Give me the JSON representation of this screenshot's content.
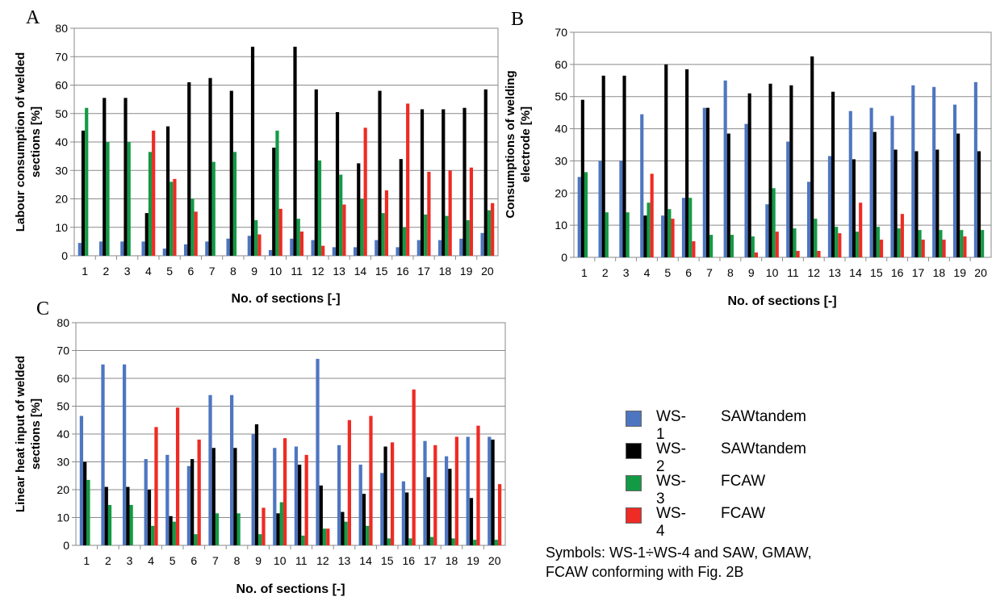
{
  "legend": [
    {
      "series": "WS-1",
      "method": "SAWtandem",
      "color": "#4e76c0"
    },
    {
      "series": "WS-2",
      "method": "SAWtandem",
      "color": "#000000"
    },
    {
      "series": "WS-3",
      "method": "FCAW",
      "color": "#139a45"
    },
    {
      "series": "WS-4",
      "method": "FCAW",
      "color": "#ee2b24"
    }
  ],
  "note": {
    "line1": "Symbols: WS-1÷WS-4 and SAW, GMAW,",
    "line2": "FCAW conforming with Fig. 2B"
  },
  "panels": {
    "a": {
      "letter": "A"
    },
    "b": {
      "letter": "B"
    },
    "c": {
      "letter": "C"
    }
  },
  "chart_data": [
    {
      "panel": "A",
      "type": "bar",
      "xlabel": "No. of sections [-]",
      "ylabel": "Labour consumption of welded sections [%]",
      "ylim": [
        0,
        80
      ],
      "yticks": [
        0,
        10,
        20,
        30,
        40,
        50,
        60,
        70,
        80
      ],
      "grid": true,
      "categories": [
        "1",
        "2",
        "3",
        "4",
        "5",
        "6",
        "7",
        "8",
        "9",
        "10",
        "11",
        "12",
        "13",
        "14",
        "15",
        "16",
        "17",
        "18",
        "19",
        "20"
      ],
      "series": [
        {
          "name": "WS-1",
          "color": "#4e76c0",
          "values": [
            4.5,
            5,
            5,
            5,
            2.5,
            4,
            5,
            6,
            7,
            2,
            6,
            5.5,
            3,
            3,
            5.5,
            3,
            5.5,
            5.5,
            6,
            8
          ]
        },
        {
          "name": "WS-2",
          "color": "#000000",
          "values": [
            44,
            55.5,
            55.5,
            15,
            45.5,
            61,
            62.5,
            58,
            73.5,
            38,
            73.5,
            58.5,
            50.5,
            32.5,
            58,
            34,
            51.5,
            51.5,
            52,
            58.5
          ]
        },
        {
          "name": "WS-3",
          "color": "#139a45",
          "values": [
            52,
            40,
            40,
            36.5,
            26,
            20,
            33,
            36.5,
            12.5,
            44,
            13,
            33.5,
            28.5,
            20,
            15,
            10,
            14.5,
            14,
            12.5,
            16
          ]
        },
        {
          "name": "WS-4",
          "color": "#ee2b24",
          "values": [
            0,
            0,
            0,
            44,
            27,
            15.5,
            0,
            0,
            7.5,
            16.5,
            8.5,
            3.5,
            18,
            45,
            23,
            53.5,
            29.5,
            30,
            31,
            18.5
          ]
        }
      ]
    },
    {
      "panel": "B",
      "type": "bar",
      "xlabel": "No. of sections [-]",
      "ylabel": "Consumptions of welding electrode [%]",
      "ylim": [
        0,
        70
      ],
      "yticks": [
        0,
        10,
        20,
        30,
        40,
        50,
        60,
        70
      ],
      "grid": true,
      "categories": [
        "1",
        "2",
        "3",
        "4",
        "5",
        "6",
        "7",
        "8",
        "9",
        "10",
        "11",
        "12",
        "13",
        "14",
        "15",
        "16",
        "17",
        "18",
        "19",
        "20"
      ],
      "series": [
        {
          "name": "WS-1",
          "color": "#4e76c0",
          "values": [
            25,
            30,
            30,
            44.5,
            13,
            18.5,
            46.5,
            55,
            41.5,
            16.5,
            36,
            23.5,
            31.5,
            45.5,
            46.5,
            44,
            53.5,
            53,
            47.5,
            54.5
          ]
        },
        {
          "name": "WS-2",
          "color": "#000000",
          "values": [
            49,
            56.5,
            56.5,
            13,
            60,
            58.5,
            46.5,
            38.5,
            51,
            54,
            53.5,
            62.5,
            51.5,
            30.5,
            39,
            33.5,
            33,
            33.5,
            38.5,
            33
          ]
        },
        {
          "name": "WS-3",
          "color": "#139a45",
          "values": [
            26.5,
            14,
            14,
            17,
            15,
            18.5,
            7,
            7,
            6.5,
            21.5,
            9,
            12,
            9.5,
            8,
            9.5,
            9,
            8.5,
            8.5,
            8.5,
            8.5
          ]
        },
        {
          "name": "WS-4",
          "color": "#ee2b24",
          "values": [
            0,
            0,
            0,
            26,
            12,
            5,
            0,
            0,
            1.5,
            8,
            2,
            2,
            7.5,
            17,
            5.5,
            13.5,
            5.5,
            5.5,
            6.5,
            0
          ]
        }
      ]
    },
    {
      "panel": "C",
      "type": "bar",
      "xlabel": "No. of sections [-]",
      "ylabel": "Linear heat input of welded sections [%]",
      "ylim": [
        0,
        80
      ],
      "yticks": [
        0,
        10,
        20,
        30,
        40,
        50,
        60,
        70,
        80
      ],
      "grid": true,
      "categories": [
        "1",
        "2",
        "3",
        "4",
        "5",
        "6",
        "7",
        "8",
        "9",
        "10",
        "11",
        "12",
        "13",
        "14",
        "15",
        "16",
        "17",
        "18",
        "19",
        "20"
      ],
      "series": [
        {
          "name": "WS-1",
          "color": "#4e76c0",
          "values": [
            46.5,
            65,
            65,
            31,
            32.5,
            28.5,
            54,
            54,
            40,
            35,
            35.5,
            67,
            36,
            29,
            26,
            23,
            37.5,
            32,
            39,
            39
          ]
        },
        {
          "name": "WS-2",
          "color": "#000000",
          "values": [
            30,
            21,
            21,
            20,
            10.5,
            31,
            35,
            35,
            43.5,
            11.5,
            29,
            21.5,
            12,
            18.5,
            35.5,
            19,
            24.5,
            27.5,
            17,
            38
          ]
        },
        {
          "name": "WS-3",
          "color": "#139a45",
          "values": [
            23.5,
            14.5,
            14.5,
            7,
            8.5,
            4,
            11.5,
            11.5,
            4,
            15.5,
            3.5,
            6,
            8.5,
            7,
            2.5,
            2.5,
            3,
            2.5,
            2,
            2
          ]
        },
        {
          "name": "WS-4",
          "color": "#ee2b24",
          "values": [
            0,
            0,
            0,
            42.5,
            49.5,
            38,
            0,
            0,
            13.5,
            38.5,
            32.5,
            6,
            45,
            46.5,
            37,
            56,
            36,
            39,
            43,
            22
          ]
        }
      ]
    }
  ]
}
